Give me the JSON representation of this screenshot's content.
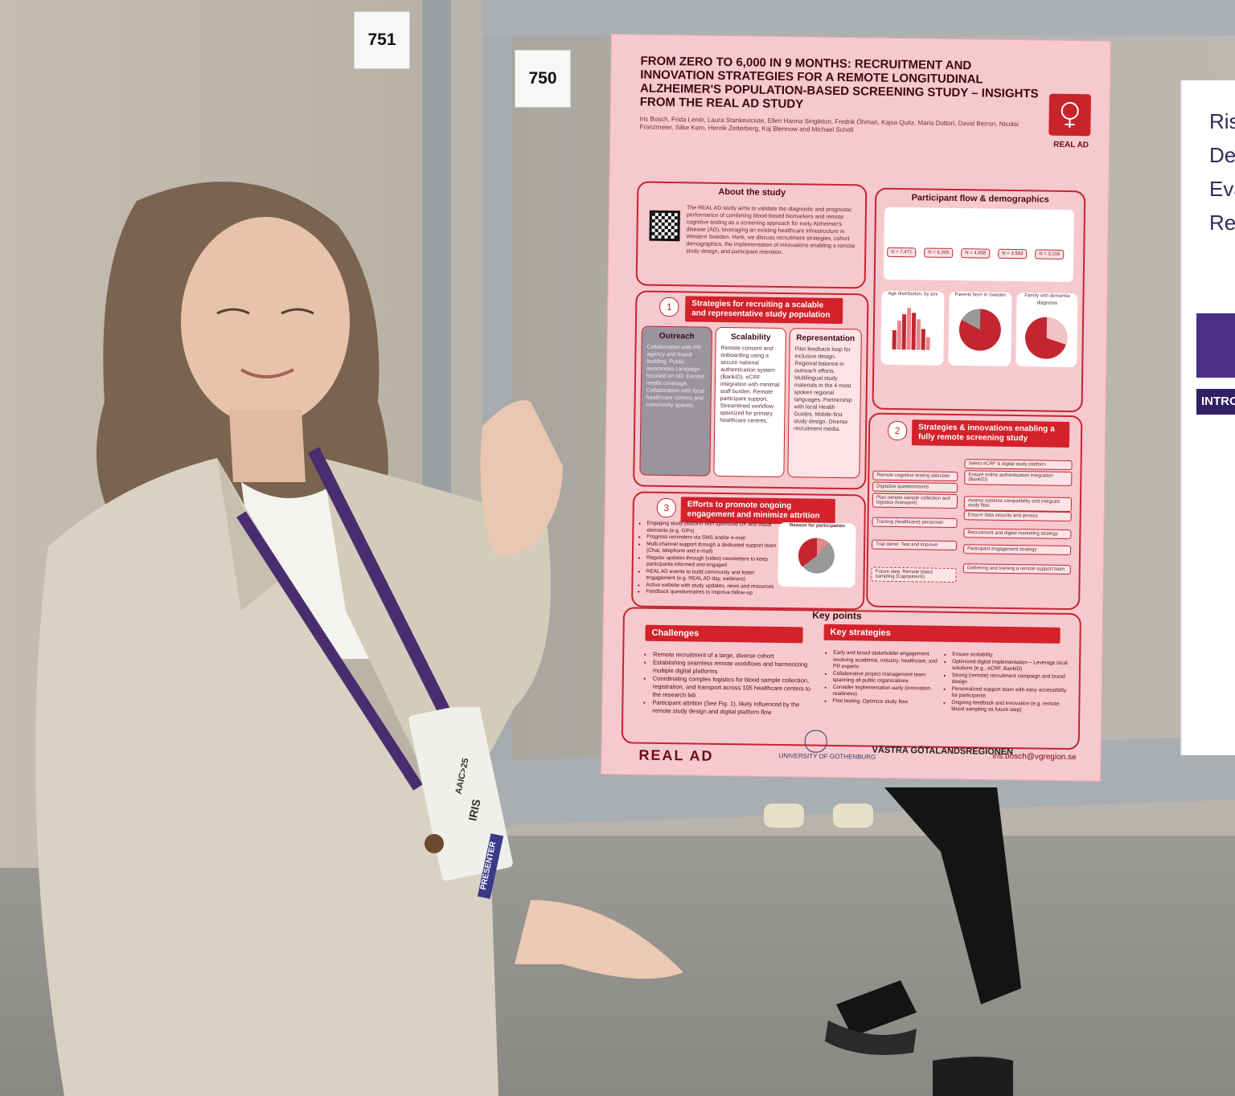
{
  "booths": {
    "left_number": "751",
    "right_number": "750"
  },
  "poster": {
    "title": "FROM ZERO TO 6,000 IN 9 MONTHS: RECRUITMENT AND INNOVATION STRATEGIES FOR A REMOTE LONGITUDINAL ALZHEIMER'S POPULATION-BASED SCREENING STUDY – INSIGHTS FROM THE REAL AD STUDY",
    "authors": "Iris Bosch, Frida Lenér, Laura Stankeviciute, Ellen Hanna Singleton, Fredrik Öhman, Kajsa Quitz, Maria Dottori, David Berron, Nicolai Franzmeier, Silke Kern, Henrik Zetterberg, Kaj Blennow and Michael Schöll",
    "logo_label": "REAL AD",
    "about": {
      "heading": "About the study",
      "body": "The REAL AD study aims to validate the diagnostic and prognostic performance of combining blood-based biomarkers and remote cognitive testing as a screening approach for early Alzheimer's disease (AD), leveraging an existing healthcare infrastructure in Western Sweden. Here, we discuss recruitment strategies, cohort demographics, the implementation of innovations enabling a remote study design, and participant retention."
    },
    "participant_flow": {
      "heading": "Participant flow & demographics",
      "counts": [
        "N = 7,471",
        "N = 6,305",
        "N = 4,858",
        "N = 3,593",
        "N = 3,106"
      ],
      "charts": [
        "Age distribution, by sex",
        "Parents born in Sweden",
        "Family with dementia diagnosis"
      ]
    },
    "section1": {
      "number": "1",
      "heading": "Strategies for recruiting a scalable and representative study population",
      "columns": [
        {
          "title": "Outreach",
          "text": "Collaboration with PR agency and brand building. Public awareness campaign focused on AD. Earned media coverage. Collaboration with local healthcare centres and community spaces."
        },
        {
          "title": "Scalability",
          "text": "Remote consent and onboarding using a secure national authentication system (BankID). eCRF integration with minimal staff burden. Remote participant support. Streamlined workflow optimized for primary healthcare centres."
        },
        {
          "title": "Representation",
          "text": "Pilot feedback loop for inclusive design. Regional balance in outreach efforts. Multilingual study materials in the 4 most spoken regional languages. Partnership with local Health Guides. Mobile-first study design. Diverse recruitment media."
        }
      ]
    },
    "section2": {
      "number": "2",
      "heading": "Strategies & innovations enabling a fully remote screening study",
      "items": [
        "Select eCRF & digital study platform",
        "Ensure online authentication integration (BankID)",
        "Remote cognitive testing selection",
        "Digitalize questionnaires",
        "Plan remote sample collection and logistics (transport)",
        "Assess systems compatibility and integrate study flow",
        "Ensure data security and privacy",
        "Training (healthcare) personnel",
        "Recruitment and digital marketing strategy",
        "Trial demo: Test and improve",
        "Participant engagement strategy",
        "Gathering and training a remote support team",
        "Future step: Remote blood sampling (Capitainer®)"
      ]
    },
    "section3": {
      "number": "3",
      "heading": "Efforts to promote ongoing engagement and minimize attrition",
      "items": [
        "Engaging study platform with optimized UX and visual elements (e.g. GIFs)",
        "Progress reminders via SMS and/or e-mail",
        "Multi-channel support through a dedicated support team (Chat, telephone and e-mail)",
        "Regular updates through (video) newsletters to keep participants informed and engaged",
        "REAL AD events to build community and foster engagement (e.g. REAL AD day, webinars)",
        "Active website with study updates, news and resources",
        "Feedback questionnaires to improve follow-up"
      ],
      "chart_title": "Reason for participation"
    },
    "key_points": {
      "heading": "Key points",
      "challenges_label": "Challenges",
      "challenges": [
        "Remote recruitment of a large, diverse cohort",
        "Establishing seamless remote workflows and harmonizing multiple digital platforms",
        "Coordinating complex logistics for blood sample collection, registration, and transport across 105 healthcare centers to the research lab",
        "Participant attrition (See Fig. 1), likely influenced by the remote study design and digital platform flow"
      ],
      "strategies_label": "Key strategies",
      "strategies": [
        "Early and broad stakeholder engagement involving academia, industry, healthcare, and PR experts",
        "Collaborative project management team spanning all public organizations",
        "Consider implementation early (innovation readiness)",
        "Pilot testing: Optimize study flow",
        "Ensure scalability",
        "Optimized digital implementation – Leverage local solutions (e.g., eCRF, BankID)",
        "Strong (remote) recruitment campaign and brand design",
        "Personalized support team with easy accessibility for participants",
        "Ongoing feedback and innovation (e.g. remote blood sampling as future step)"
      ]
    },
    "footer": {
      "logo": "REAL AD",
      "university": "UNIVERSITY OF GOTHENBURG",
      "region": "VÄSTRA GÖTALANDSREGIONEN",
      "email": "iris.bosch@vgregion.se"
    }
  },
  "neighbor_poster": {
    "title": "Ris De Eva Re",
    "intro": "INTRO"
  },
  "badge": {
    "event": "AAIC>25",
    "name": "IRIS",
    "role": "PRESENTER"
  },
  "colors": {
    "poster_bg": "#f6c9ce",
    "accent_red": "#d3222b",
    "blazer": "#d9d2c2"
  }
}
